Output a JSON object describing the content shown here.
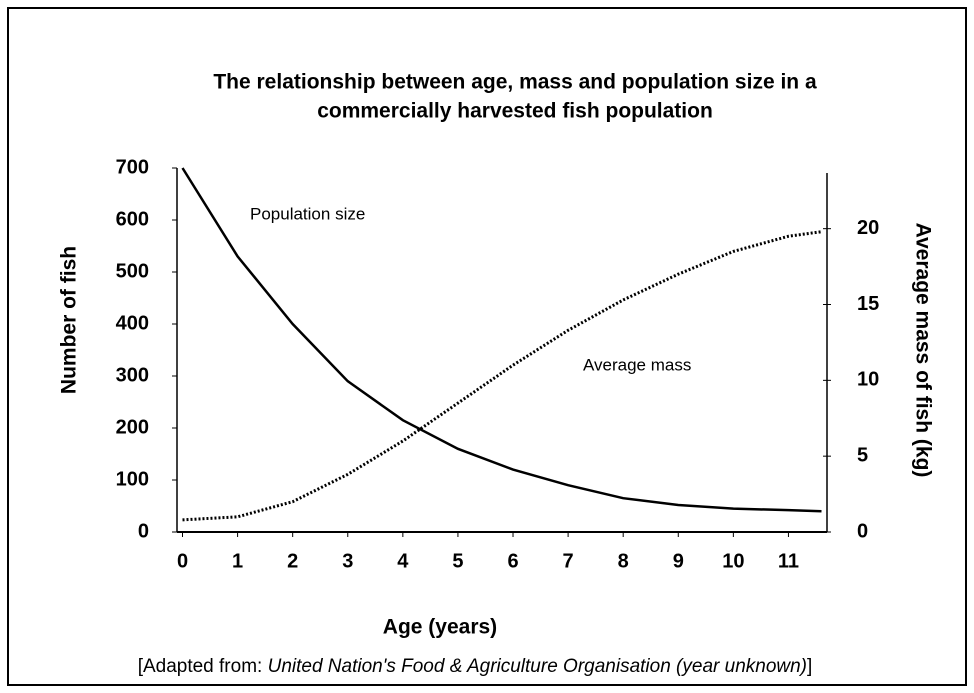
{
  "chart_data": {
    "type": "line",
    "title": [
      "The relationship between age, mass and population size in a",
      "commercially harvested fish population"
    ],
    "x_label": "Age (years)",
    "y_label": "Number of fish",
    "y2_label": "Average mass of fish (kg)",
    "x": [
      0,
      1,
      2,
      3,
      4,
      5,
      6,
      7,
      8,
      9,
      10,
      11,
      11.6
    ],
    "series": [
      {
        "name": "Population size",
        "color": "#000000",
        "style": "solid",
        "values": [
          700,
          530,
          400,
          290,
          215,
          160,
          120,
          90,
          65,
          52,
          45,
          42,
          40
        ]
      },
      {
        "name": "Average mass",
        "color": "#000000",
        "style": "dotted",
        "axis": "y2",
        "values": [
          0.8,
          1.0,
          2,
          3.8,
          6,
          8.5,
          11,
          13.3,
          15.3,
          17,
          18.5,
          19.5,
          19.8
        ]
      }
    ],
    "xlim": [
      -0.1,
      11.7
    ],
    "xticks": [
      0,
      1,
      2,
      3,
      4,
      5,
      6,
      7,
      8,
      9,
      10,
      11
    ],
    "ylim": [
      0,
      700
    ],
    "yticks": [
      0,
      100,
      200,
      300,
      400,
      500,
      600,
      700
    ],
    "y2lim": [
      0,
      24
    ],
    "y2ticks": [
      0,
      5,
      10,
      15,
      20
    ],
    "source": [
      "[Adapted from: ",
      "United Nation's Food & Agriculture Organisation (year unknown)",
      "]"
    ]
  }
}
